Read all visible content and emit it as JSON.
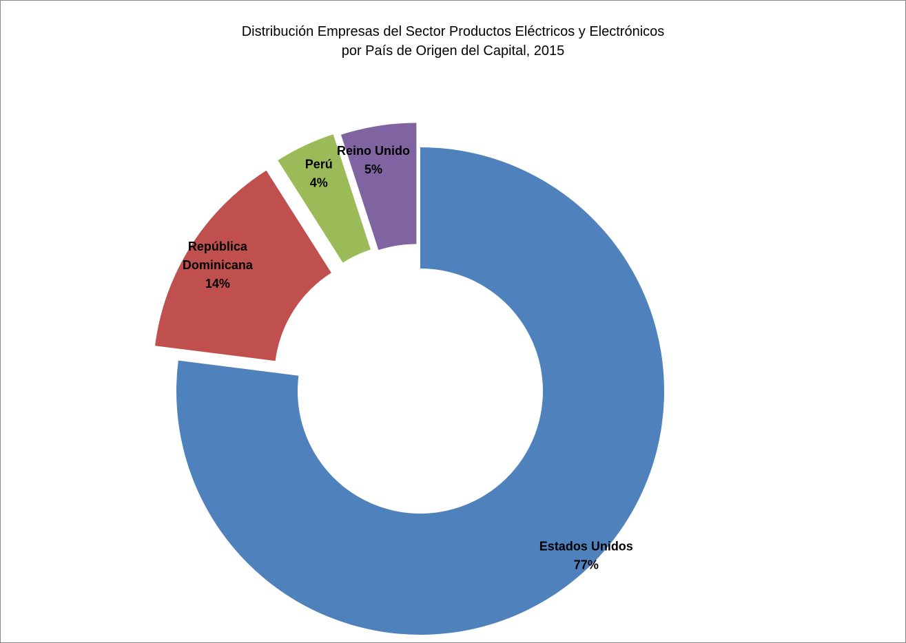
{
  "chart_data": {
    "type": "pie",
    "title": [
      "Distribución Empresas del Sector Productos Eléctricos y Electrónicos",
      "por País de Origen del Capital, 2015"
    ],
    "slices": [
      {
        "name": "Estados Unidos",
        "value": 77,
        "label": "77%",
        "color": "#4F81BD"
      },
      {
        "name": "República Dominicana",
        "value": 14,
        "label": "14%",
        "color": "#C0504D",
        "label_lines": [
          "República",
          "Dominicana"
        ]
      },
      {
        "name": "Perú",
        "value": 4,
        "label": "4%",
        "color": "#9BBB59"
      },
      {
        "name": "Reino Unido",
        "value": 5,
        "label": "5%",
        "color": "#8064A2"
      }
    ],
    "style": "doughnut, exploded slices",
    "legend": "none"
  }
}
